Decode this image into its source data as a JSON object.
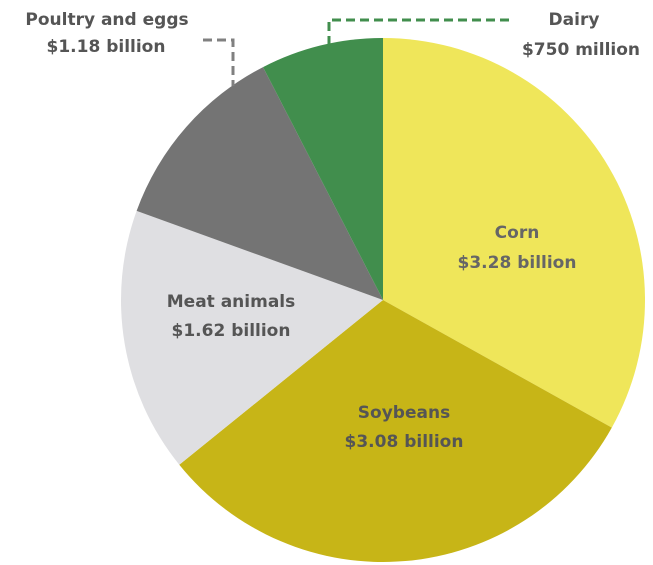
{
  "chart_data": {
    "type": "pie",
    "start": "12 o'clock",
    "direction": "clockwise",
    "slices": [
      {
        "name": "Corn",
        "value_label": "$3.28 billion",
        "value": 3.28,
        "color": "#efe65a",
        "label_color": "#666666"
      },
      {
        "name": "Soybeans",
        "value_label": "$3.08 billion",
        "value": 3.08,
        "color": "#c7b517",
        "label_color": "#555555"
      },
      {
        "name": "Meat animals",
        "value_label": "$1.62 billion",
        "value": 1.62,
        "color": "#dfdfe2",
        "label_color": "#555555"
      },
      {
        "name": "Poultry and eggs",
        "value_label": "$1.18 billion",
        "value": 1.18,
        "color": "#747474",
        "label_color": "#555555"
      },
      {
        "name": "Dairy",
        "value_label": "$750 million",
        "value": 0.75,
        "color": "#418e4d",
        "label_color": "#555555"
      }
    ],
    "leader_lines": {
      "Poultry and eggs": {
        "color": "#808080",
        "style": "dashed"
      },
      "Dairy": {
        "color": "#418e4d",
        "style": "dashed"
      }
    }
  }
}
